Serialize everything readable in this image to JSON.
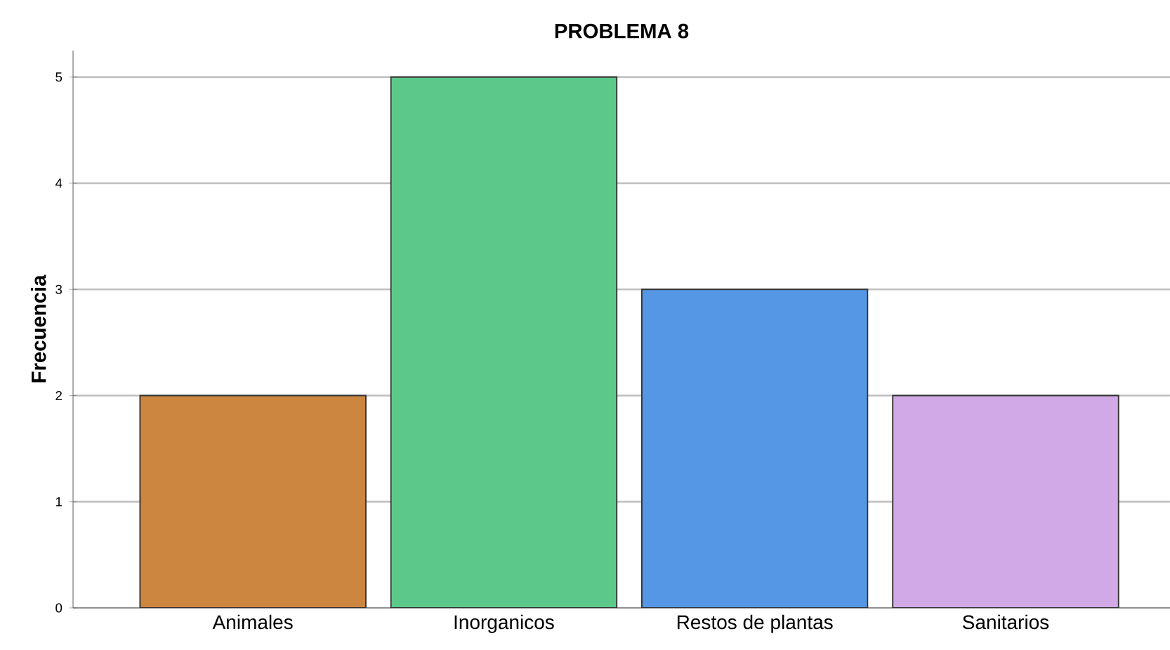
{
  "chart_data": {
    "type": "bar",
    "title": "PROBLEMA 8",
    "ylabel": "Frecuencia",
    "categories": [
      "Animales",
      "Inorganicos",
      "Restos de plantas",
      "Sanitarios"
    ],
    "values": [
      2,
      5,
      3,
      2
    ],
    "colors": [
      "#cc8640",
      "#5cc98a",
      "#5597e5",
      "#d0a9e6"
    ],
    "ylim": [
      0,
      5.25
    ],
    "yticks": [
      0,
      1,
      2,
      3,
      4,
      5
    ],
    "grid": "y"
  }
}
